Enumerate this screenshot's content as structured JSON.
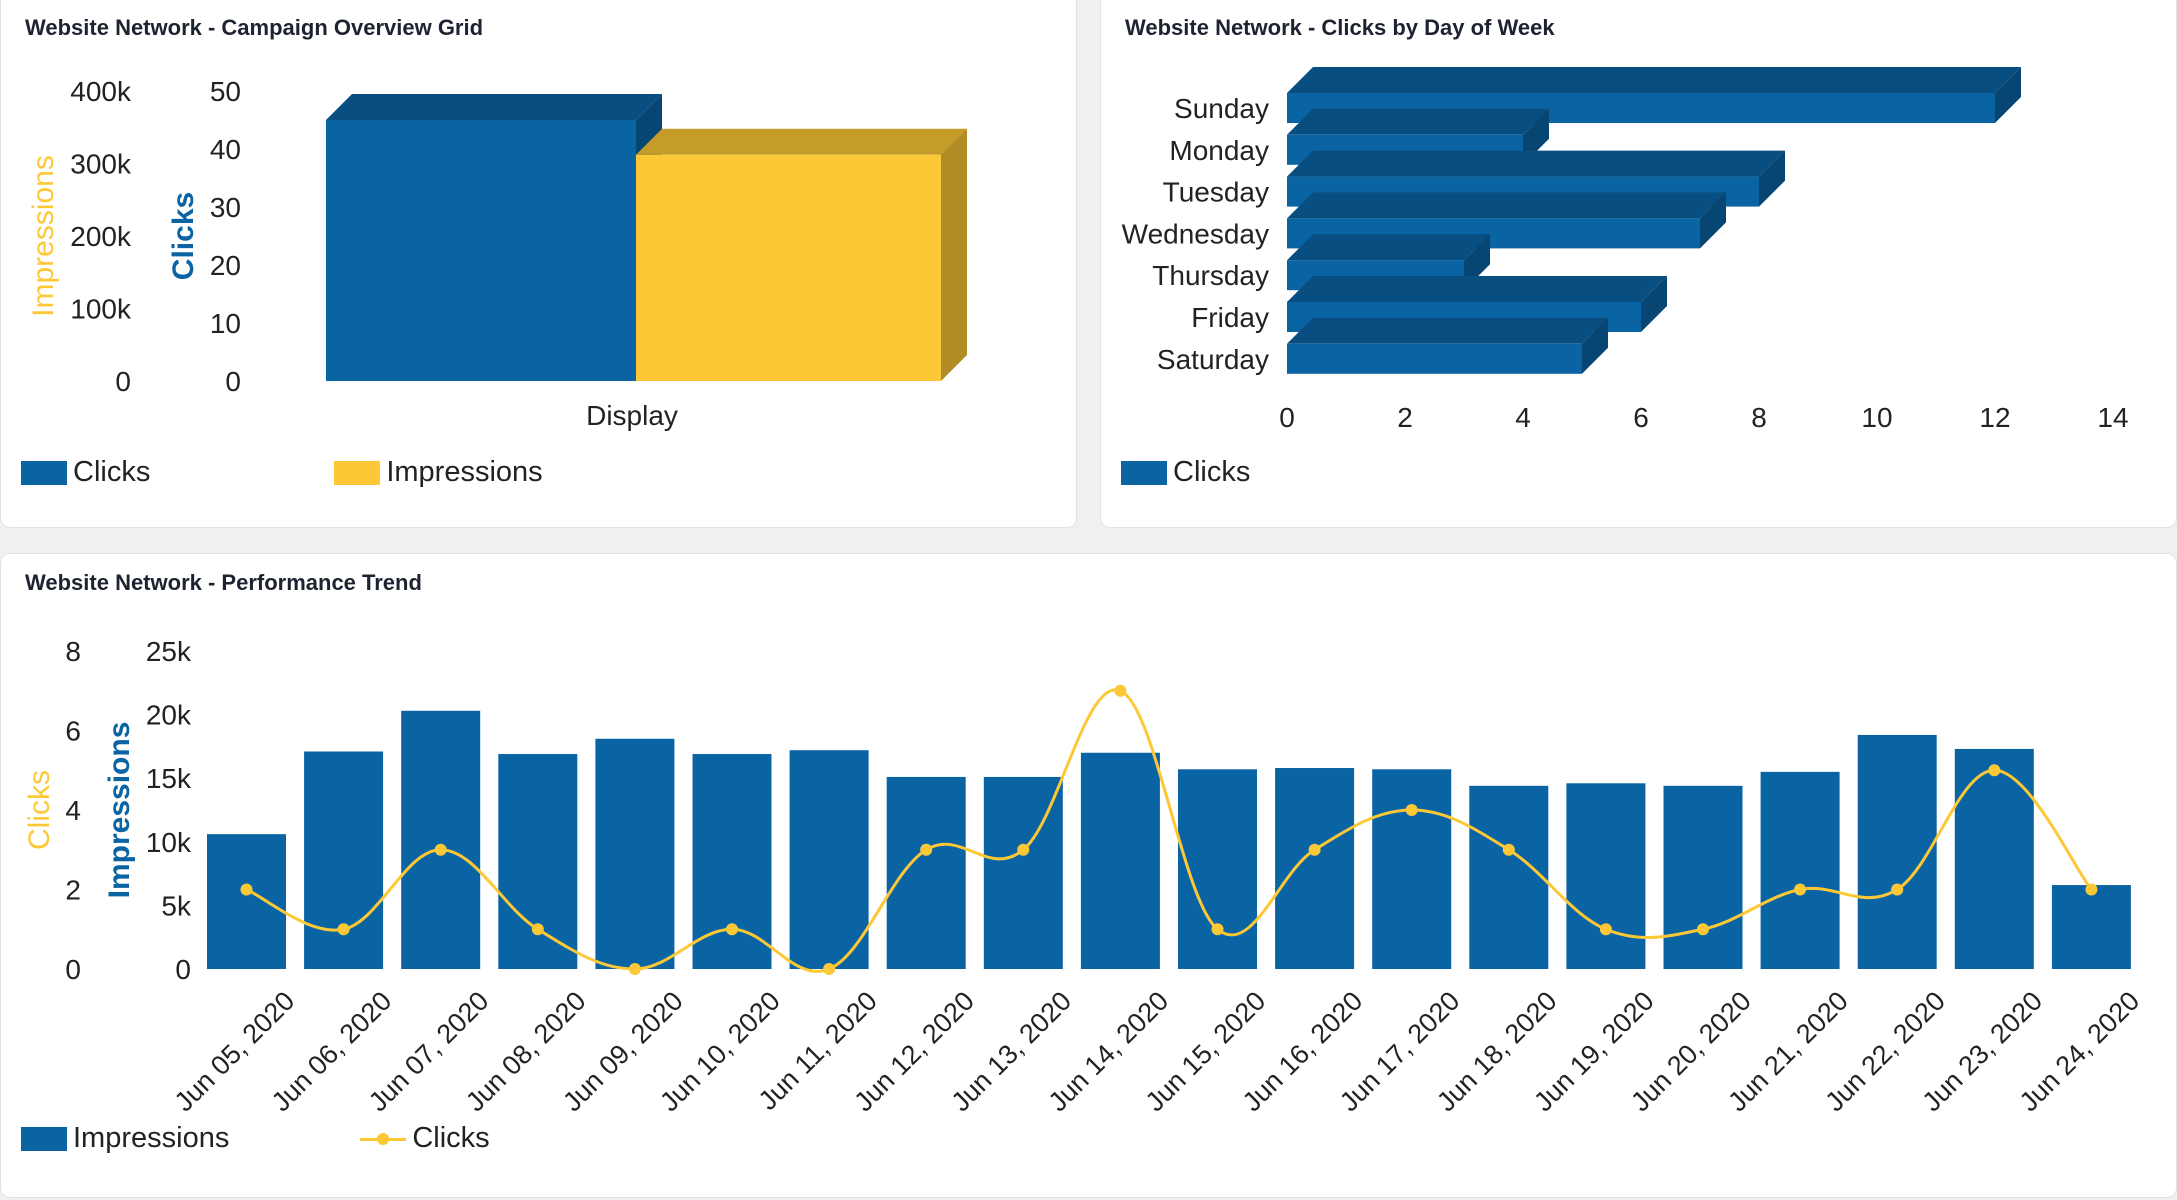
{
  "colors": {
    "blue": "#0a64a4",
    "yellow": "#fdc835"
  },
  "panels": {
    "overview": {
      "title": "Website Network - Campaign Overview Grid",
      "legend": {
        "clicks": "Clicks",
        "impressions": "Impressions"
      }
    },
    "dow": {
      "title": "Website Network - Clicks by Day of Week",
      "legend": {
        "clicks": "Clicks"
      }
    },
    "trend": {
      "title": "Website Network - Performance Trend",
      "legend": {
        "impressions": "Impressions",
        "clicks": "Clicks"
      }
    }
  },
  "chart_data": [
    {
      "type": "bar",
      "title": "Website Network - Campaign Overview Grid",
      "categories": [
        "Display"
      ],
      "series": [
        {
          "name": "Clicks",
          "values": [
            45
          ],
          "axis": "Clicks",
          "color": "#0a64a4"
        },
        {
          "name": "Impressions",
          "values": [
            312000
          ],
          "axis": "Impressions",
          "color": "#fdc835"
        }
      ],
      "axes": {
        "impressions": {
          "label": "Impressions",
          "ylim": [
            0,
            400000
          ],
          "ticks": [
            "0",
            "100k",
            "200k",
            "300k",
            "400k"
          ]
        },
        "clicks": {
          "label": "Clicks",
          "ylim": [
            0,
            50
          ],
          "ticks": [
            "0",
            "10",
            "20",
            "30",
            "40",
            "50"
          ]
        }
      },
      "style": "3d",
      "legend": "bottom-left"
    },
    {
      "type": "bar",
      "orientation": "horizontal",
      "title": "Website Network - Clicks by Day of Week",
      "categories": [
        "Sunday",
        "Monday",
        "Tuesday",
        "Wednesday",
        "Thursday",
        "Friday",
        "Saturday"
      ],
      "series": [
        {
          "name": "Clicks",
          "values": [
            12,
            4,
            8,
            7,
            3,
            6,
            5
          ],
          "color": "#0a64a4"
        }
      ],
      "xlim": [
        0,
        14
      ],
      "xticks": [
        "0",
        "2",
        "4",
        "6",
        "8",
        "10",
        "12",
        "14"
      ],
      "style": "3d",
      "legend": "bottom-left"
    },
    {
      "type": "bar",
      "title": "Website Network - Performance Trend",
      "categories": [
        "Jun 05, 2020",
        "Jun 06, 2020",
        "Jun 07, 2020",
        "Jun 08, 2020",
        "Jun 09, 2020",
        "Jun 10, 2020",
        "Jun 11, 2020",
        "Jun 12, 2020",
        "Jun 13, 2020",
        "Jun 14, 2020",
        "Jun 15, 2020",
        "Jun 16, 2020",
        "Jun 17, 2020",
        "Jun 18, 2020",
        "Jun 19, 2020",
        "Jun 20, 2020",
        "Jun 21, 2020",
        "Jun 22, 2020",
        "Jun 23, 2020",
        "Jun 24, 2020"
      ],
      "series": [
        {
          "name": "Impressions",
          "type": "bar",
          "axis": "Impressions",
          "color": "#0a64a4",
          "values": [
            10600,
            17100,
            20300,
            16900,
            18100,
            16900,
            17200,
            15100,
            15100,
            17000,
            15700,
            15800,
            15700,
            14400,
            14600,
            14400,
            15500,
            18400,
            17300,
            6600
          ]
        },
        {
          "name": "Clicks",
          "type": "line",
          "axis": "Clicks",
          "color": "#fdc835",
          "values": [
            2,
            1,
            3,
            1,
            0,
            1,
            0,
            3,
            3,
            7,
            1,
            3,
            4,
            3,
            1,
            1,
            2,
            2,
            5,
            2
          ]
        }
      ],
      "axes": {
        "clicks": {
          "label": "Clicks",
          "ylim": [
            0,
            8
          ],
          "ticks": [
            "0",
            "2",
            "4",
            "6",
            "8"
          ]
        },
        "impressions": {
          "label": "Impressions",
          "ylim": [
            0,
            25000
          ],
          "ticks": [
            "0",
            "5k",
            "10k",
            "15k",
            "20k",
            "25k"
          ]
        }
      },
      "legend": "bottom-left"
    }
  ]
}
